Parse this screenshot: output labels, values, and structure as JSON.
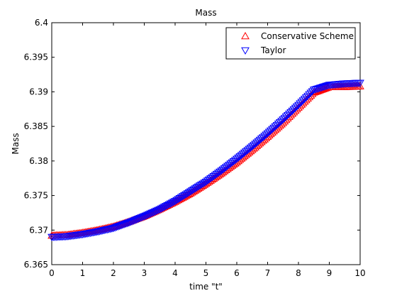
{
  "chart_data": {
    "type": "scatter",
    "title": "Mass",
    "xlabel": "time \"t\"",
    "ylabel": "Mass",
    "xlim": [
      0,
      10
    ],
    "ylim": [
      6.365,
      6.4
    ],
    "x_ticks": [
      0,
      1,
      2,
      3,
      4,
      5,
      6,
      7,
      8,
      9,
      10
    ],
    "y_ticks": [
      6.365,
      6.37,
      6.375,
      6.38,
      6.385,
      6.39,
      6.395,
      6.4
    ],
    "x_tick_labels": [
      "0",
      "1",
      "2",
      "3",
      "4",
      "5",
      "6",
      "7",
      "8",
      "9",
      "10"
    ],
    "y_tick_labels": [
      "6.365",
      "6.37",
      "6.375",
      "6.38",
      "6.385",
      "6.39",
      "6.395",
      "6.4"
    ],
    "grid": false,
    "legend_position": "top-right",
    "series": [
      {
        "name": "Conservative Scheme",
        "color": "#ff0000",
        "marker": "triangle-up",
        "x": [
          0,
          0.5,
          1,
          1.5,
          2,
          2.5,
          3,
          3.5,
          4,
          4.5,
          5,
          5.5,
          6,
          6.5,
          7,
          7.5,
          8,
          8.5,
          9,
          9.5,
          10
        ],
        "y": [
          6.3692,
          6.3693,
          6.3696,
          6.37,
          6.3705,
          6.3712,
          6.372,
          6.373,
          6.3741,
          6.3753,
          6.3767,
          6.3782,
          6.3798,
          6.3816,
          6.3835,
          6.3855,
          6.3877,
          6.3899,
          6.3907,
          6.3907,
          6.3908
        ]
      },
      {
        "name": "Taylor",
        "color": "#0000ff",
        "marker": "triangle-down",
        "x": [
          0,
          0.5,
          1,
          1.5,
          2,
          2.5,
          3,
          3.5,
          4,
          4.5,
          5,
          5.5,
          6,
          6.5,
          7,
          7.5,
          8,
          8.5,
          9,
          9.5,
          10
        ],
        "y": [
          6.369,
          6.3691,
          6.3694,
          6.3698,
          6.3703,
          6.3711,
          6.372,
          6.373,
          6.3742,
          6.3756,
          6.377,
          6.3786,
          6.3803,
          6.3821,
          6.384,
          6.386,
          6.3881,
          6.3903,
          6.391,
          6.3912,
          6.3913
        ]
      }
    ]
  }
}
